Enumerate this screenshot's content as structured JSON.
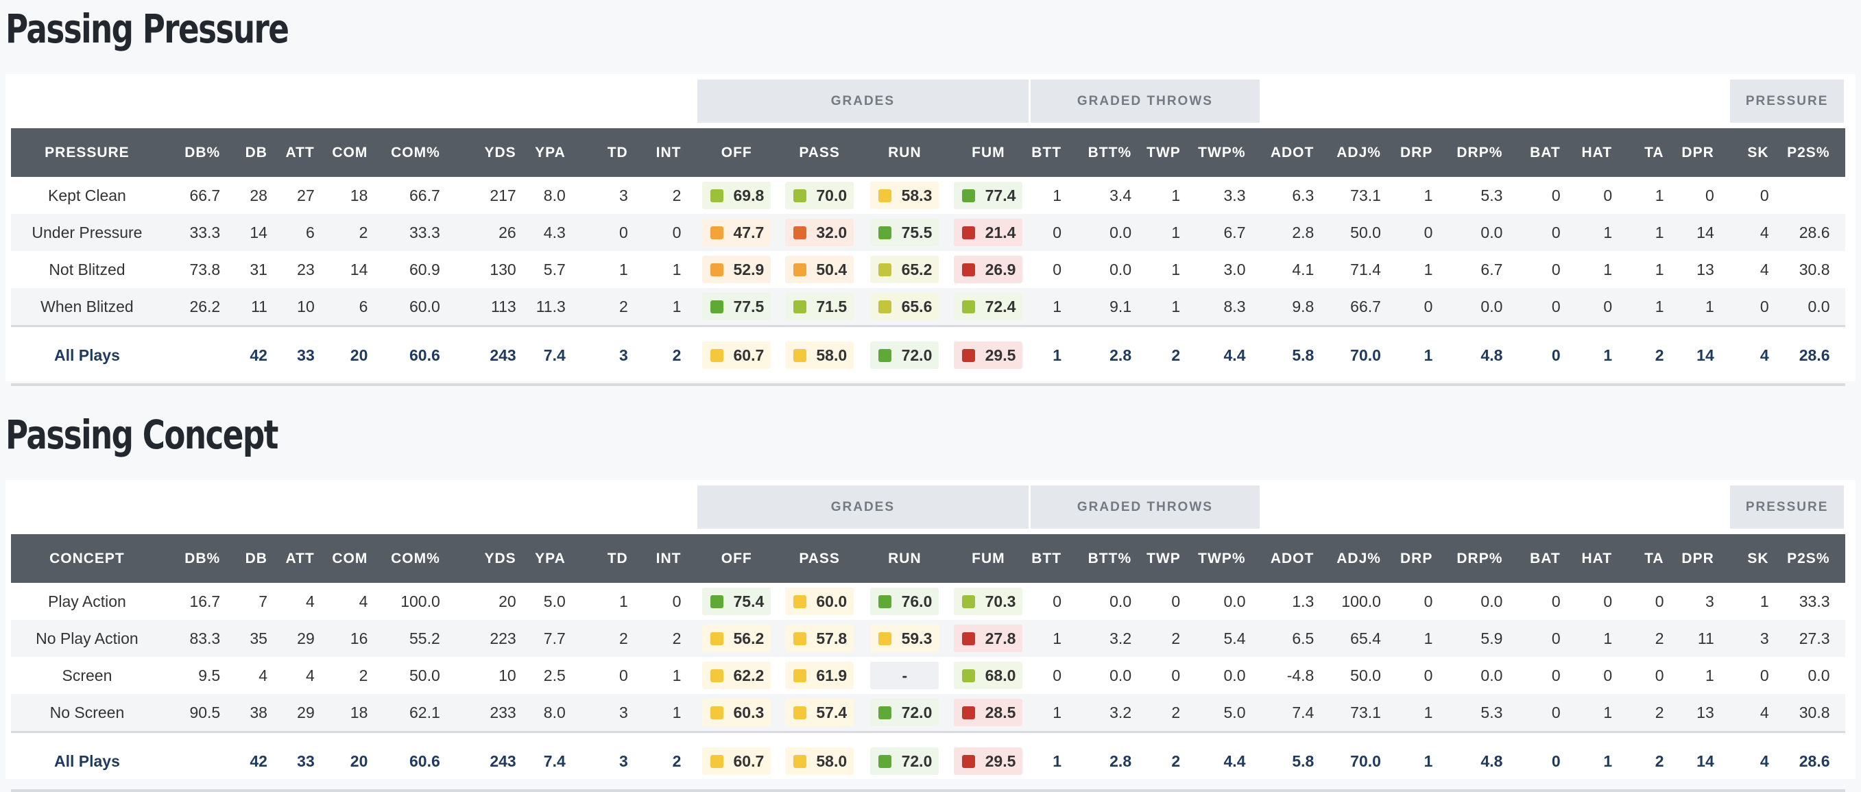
{
  "colors": {
    "elite": "#5fa936",
    "high": "#9cc03a",
    "above_avg": "#c3c63c",
    "average": "#f5c73a",
    "below_avg": "#f2a33a",
    "poor": "#e0692f",
    "bad": "#c4362c",
    "header_bg": "#565c64",
    "group_bg": "#e4e7eb",
    "total_text": "#1f3a5c"
  },
  "group_labels": {
    "grades": "GRADES",
    "graded_throws": "GRADED THROWS",
    "pressure": "PRESSURE"
  },
  "column_headers": [
    "DB%",
    "DB",
    "ATT",
    "COM",
    "COM%",
    "YDS",
    "YPA",
    "TD",
    "INT",
    "OFF",
    "PASS",
    "RUN",
    "FUM",
    "BTT",
    "BTT%",
    "TWP",
    "TWP%",
    "ADOT",
    "ADJ%",
    "DRP",
    "DRP%",
    "BAT",
    "HAT",
    "TA",
    "DPR",
    "SK",
    "P2S%"
  ],
  "sections": [
    {
      "title": "Passing Pressure",
      "label_header": "PRESSURE",
      "rows": [
        {
          "label": "Kept Clean",
          "stats1": [
            "66.7",
            "28",
            "27",
            "18",
            "66.7",
            "217",
            "8.0",
            "3",
            "2"
          ],
          "grades": [
            {
              "v": "69.8",
              "c": "high"
            },
            {
              "v": "70.0",
              "c": "high"
            },
            {
              "v": "58.3",
              "c": "average"
            },
            {
              "v": "77.4",
              "c": "elite"
            }
          ],
          "stats2": [
            "1",
            "3.4",
            "1",
            "3.3",
            "6.3",
            "73.1",
            "1",
            "5.3",
            "0",
            "0",
            "1",
            "0",
            "0",
            ""
          ]
        },
        {
          "label": "Under Pressure",
          "stats1": [
            "33.3",
            "14",
            "6",
            "2",
            "33.3",
            "26",
            "4.3",
            "0",
            "0"
          ],
          "grades": [
            {
              "v": "47.7",
              "c": "below_avg"
            },
            {
              "v": "32.0",
              "c": "poor"
            },
            {
              "v": "75.5",
              "c": "elite"
            },
            {
              "v": "21.4",
              "c": "bad"
            }
          ],
          "stats2": [
            "0",
            "0.0",
            "1",
            "6.7",
            "2.8",
            "50.0",
            "0",
            "0.0",
            "0",
            "1",
            "1",
            "14",
            "4",
            "28.6"
          ]
        },
        {
          "label": "Not Blitzed",
          "stats1": [
            "73.8",
            "31",
            "23",
            "14",
            "60.9",
            "130",
            "5.7",
            "1",
            "1"
          ],
          "grades": [
            {
              "v": "52.9",
              "c": "below_avg"
            },
            {
              "v": "50.4",
              "c": "below_avg"
            },
            {
              "v": "65.2",
              "c": "above_avg"
            },
            {
              "v": "26.9",
              "c": "bad"
            }
          ],
          "stats2": [
            "0",
            "0.0",
            "1",
            "3.0",
            "4.1",
            "71.4",
            "1",
            "6.7",
            "0",
            "1",
            "1",
            "13",
            "4",
            "30.8"
          ]
        },
        {
          "label": "When Blitzed",
          "stats1": [
            "26.2",
            "11",
            "10",
            "6",
            "60.0",
            "113",
            "11.3",
            "2",
            "1"
          ],
          "grades": [
            {
              "v": "77.5",
              "c": "elite"
            },
            {
              "v": "71.5",
              "c": "high"
            },
            {
              "v": "65.6",
              "c": "above_avg"
            },
            {
              "v": "72.4",
              "c": "high"
            }
          ],
          "stats2": [
            "1",
            "9.1",
            "1",
            "8.3",
            "9.8",
            "66.7",
            "0",
            "0.0",
            "0",
            "0",
            "1",
            "1",
            "0",
            "0.0"
          ]
        }
      ],
      "total": {
        "label": "All Plays",
        "stats1": [
          "",
          "42",
          "33",
          "20",
          "60.6",
          "243",
          "7.4",
          "3",
          "2"
        ],
        "grades": [
          {
            "v": "60.7",
            "c": "average"
          },
          {
            "v": "58.0",
            "c": "average"
          },
          {
            "v": "72.0",
            "c": "elite"
          },
          {
            "v": "29.5",
            "c": "bad"
          }
        ],
        "stats2": [
          "1",
          "2.8",
          "2",
          "4.4",
          "5.8",
          "70.0",
          "1",
          "4.8",
          "0",
          "1",
          "2",
          "14",
          "4",
          "28.6"
        ]
      }
    },
    {
      "title": "Passing Concept",
      "label_header": "CONCEPT",
      "rows": [
        {
          "label": "Play Action",
          "stats1": [
            "16.7",
            "7",
            "4",
            "4",
            "100.0",
            "20",
            "5.0",
            "1",
            "0"
          ],
          "grades": [
            {
              "v": "75.4",
              "c": "elite"
            },
            {
              "v": "60.0",
              "c": "average"
            },
            {
              "v": "76.0",
              "c": "elite"
            },
            {
              "v": "70.3",
              "c": "high"
            }
          ],
          "stats2": [
            "0",
            "0.0",
            "0",
            "0.0",
            "1.3",
            "100.0",
            "0",
            "0.0",
            "0",
            "0",
            "0",
            "3",
            "1",
            "33.3"
          ]
        },
        {
          "label": "No Play Action",
          "stats1": [
            "83.3",
            "35",
            "29",
            "16",
            "55.2",
            "223",
            "7.7",
            "2",
            "2"
          ],
          "grades": [
            {
              "v": "56.2",
              "c": "average"
            },
            {
              "v": "57.8",
              "c": "average"
            },
            {
              "v": "59.3",
              "c": "average"
            },
            {
              "v": "27.8",
              "c": "bad"
            }
          ],
          "stats2": [
            "1",
            "3.2",
            "2",
            "5.4",
            "6.5",
            "65.4",
            "1",
            "5.9",
            "0",
            "1",
            "2",
            "11",
            "3",
            "27.3"
          ]
        },
        {
          "label": "Screen",
          "stats1": [
            "9.5",
            "4",
            "4",
            "2",
            "50.0",
            "10",
            "2.5",
            "0",
            "1"
          ],
          "grades": [
            {
              "v": "62.2",
              "c": "average"
            },
            {
              "v": "61.9",
              "c": "average"
            },
            {
              "v": "-",
              "c": "none"
            },
            {
              "v": "68.0",
              "c": "high"
            }
          ],
          "stats2": [
            "0",
            "0.0",
            "0",
            "0.0",
            "-4.8",
            "50.0",
            "0",
            "0.0",
            "0",
            "0",
            "0",
            "1",
            "0",
            "0.0"
          ]
        },
        {
          "label": "No Screen",
          "stats1": [
            "90.5",
            "38",
            "29",
            "18",
            "62.1",
            "233",
            "8.0",
            "3",
            "1"
          ],
          "grades": [
            {
              "v": "60.3",
              "c": "average"
            },
            {
              "v": "57.4",
              "c": "average"
            },
            {
              "v": "72.0",
              "c": "elite"
            },
            {
              "v": "28.5",
              "c": "bad"
            }
          ],
          "stats2": [
            "1",
            "3.2",
            "2",
            "5.0",
            "7.4",
            "73.1",
            "1",
            "5.3",
            "0",
            "1",
            "2",
            "13",
            "4",
            "30.8"
          ]
        }
      ],
      "total": {
        "label": "All Plays",
        "stats1": [
          "",
          "42",
          "33",
          "20",
          "60.6",
          "243",
          "7.4",
          "3",
          "2"
        ],
        "grades": [
          {
            "v": "60.7",
            "c": "average"
          },
          {
            "v": "58.0",
            "c": "average"
          },
          {
            "v": "72.0",
            "c": "elite"
          },
          {
            "v": "29.5",
            "c": "bad"
          }
        ],
        "stats2": [
          "1",
          "2.8",
          "2",
          "4.4",
          "5.8",
          "70.0",
          "1",
          "4.8",
          "0",
          "1",
          "2",
          "14",
          "4",
          "28.6"
        ]
      }
    }
  ]
}
